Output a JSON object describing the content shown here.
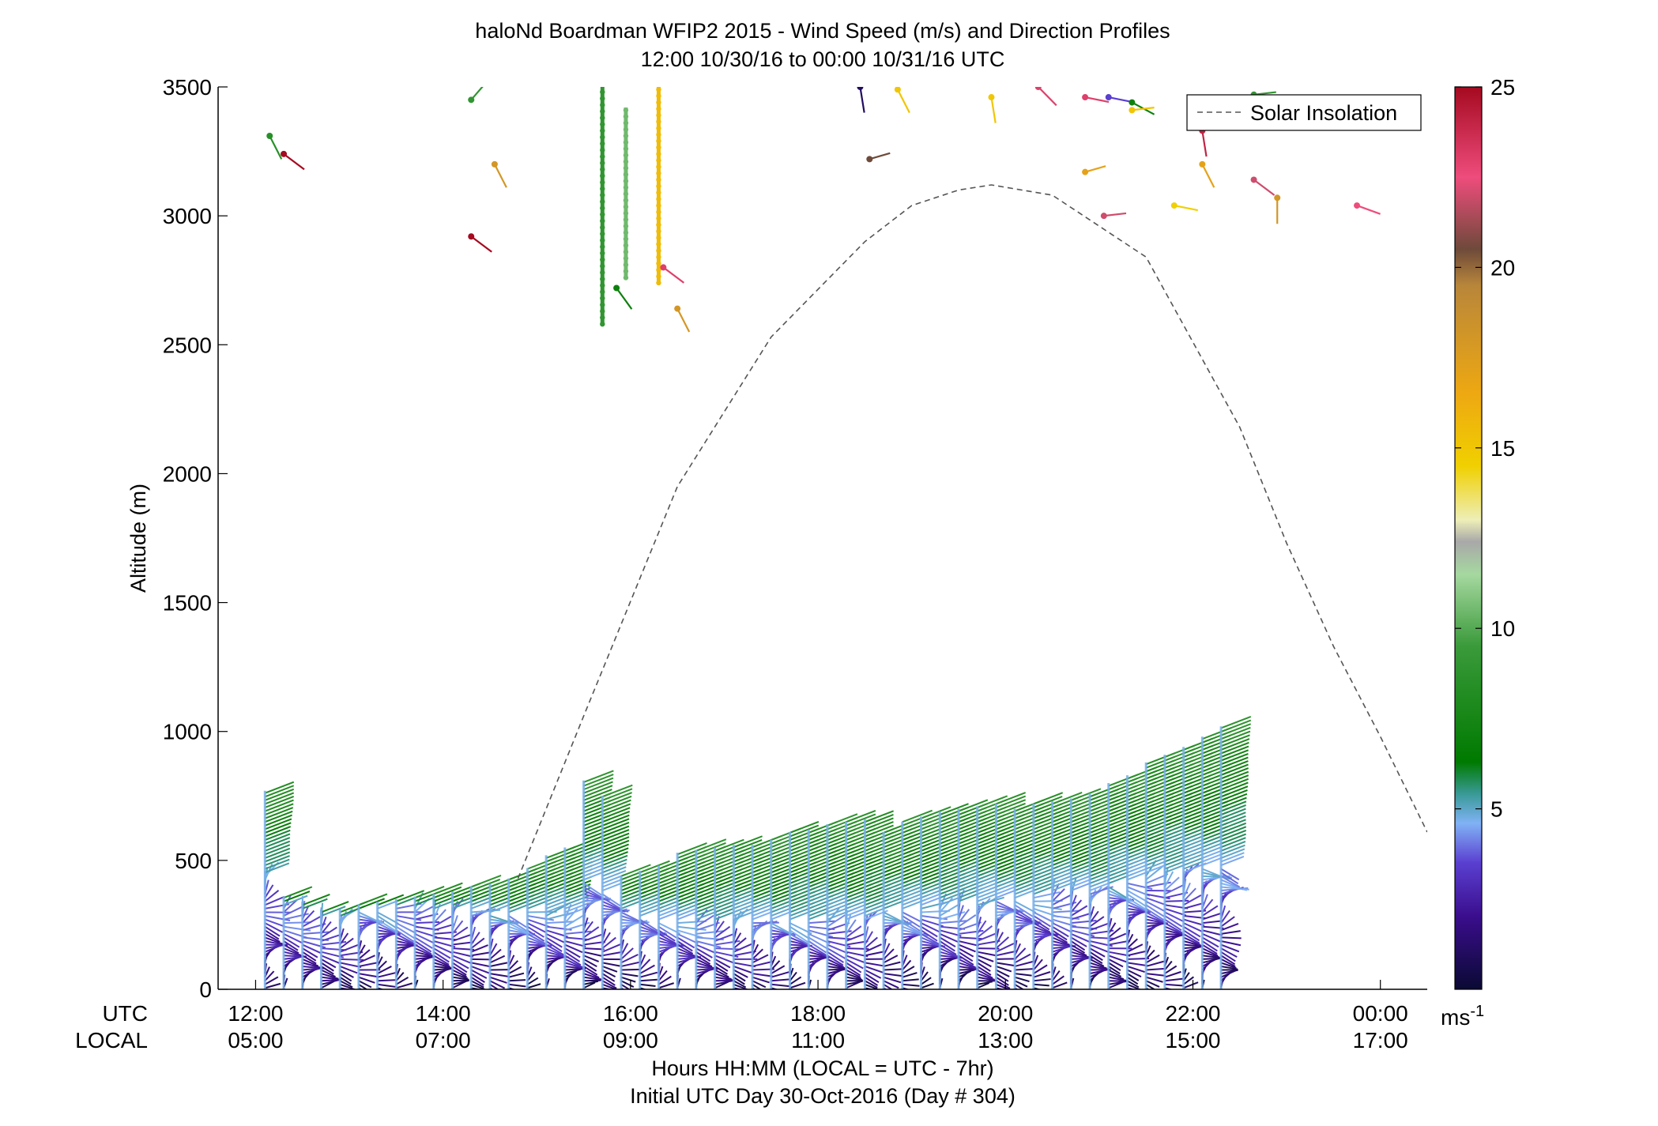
{
  "chart_data": {
    "type": "wind_barb_profile",
    "title": "haloNd Boardman WFIP2 2015 - Wind Speed (m/s) and Direction Profiles",
    "subtitle": "12:00 10/30/16 to 00:00 10/31/16  UTC",
    "ylabel": "Altitude (m)",
    "ylim": [
      0,
      3500
    ],
    "yticks": [
      "0",
      "500",
      "1000",
      "1500",
      "2000",
      "2500",
      "3000",
      "3500"
    ],
    "x_range_hours_utc": [
      11.6,
      24.5
    ],
    "xtick_utc": [
      "12:00",
      "14:00",
      "16:00",
      "18:00",
      "20:00",
      "22:00",
      "00:00"
    ],
    "xtick_local": [
      "05:00",
      "07:00",
      "09:00",
      "11:00",
      "13:00",
      "15:00",
      "17:00"
    ],
    "x_row_label_utc": "UTC",
    "x_row_label_local": "LOCAL",
    "xlabel_line1": "Hours HH:MM  (LOCAL = UTC - 7hr)",
    "xlabel_line2": "Initial UTC Day 30-Oct-2016 (Day # 304)",
    "legend": {
      "entry": "Solar Insolation",
      "placement": "top-right",
      "style": "dashed",
      "color": "#555555"
    },
    "colorbar": {
      "ticks": [
        "5",
        "10",
        "15",
        "20",
        "25"
      ],
      "unit_label": "ms",
      "unit_exp": "-1",
      "range": [
        0,
        25
      ],
      "stops": [
        {
          "v": 0,
          "c": "#0a0a33"
        },
        {
          "v": 2,
          "c": "#3a0d8c"
        },
        {
          "v": 3.5,
          "c": "#5a3fd0"
        },
        {
          "v": 4.6,
          "c": "#80b2f5"
        },
        {
          "v": 5.4,
          "c": "#3a9a98"
        },
        {
          "v": 6.3,
          "c": "#007a00"
        },
        {
          "v": 9.5,
          "c": "#3a9a3a"
        },
        {
          "v": 11.5,
          "c": "#a6d8a0"
        },
        {
          "v": 12.4,
          "c": "#a8a8a8"
        },
        {
          "v": 13,
          "c": "#eeeeb8"
        },
        {
          "v": 14.5,
          "c": "#f0d000"
        },
        {
          "v": 16.5,
          "c": "#eea812"
        },
        {
          "v": 19.5,
          "c": "#b8863a"
        },
        {
          "v": 20.5,
          "c": "#6e4a3a"
        },
        {
          "v": 22.5,
          "c": "#ee4c7c"
        },
        {
          "v": 25,
          "c": "#a50a20"
        }
      ]
    },
    "solar_insolation_curve": {
      "hours_utc": [
        14.8,
        15.5,
        16.5,
        17.5,
        18.5,
        19.0,
        19.5,
        19.85,
        20.5,
        21.5,
        22.5,
        23.0,
        23.5,
        24.0,
        24.5
      ],
      "altitude_m": [
        430,
        1060,
        1950,
        2530,
        2900,
        3040,
        3100,
        3120,
        3080,
        2840,
        2180,
        1730,
        1330,
        980,
        610
      ]
    },
    "wind_profiles": {
      "start_hour_utc": 12.1,
      "step_hours": 0.2,
      "top_altitude_m": [
        770,
        360,
        340,
        310,
        310,
        330,
        340,
        350,
        360,
        370,
        380,
        400,
        410,
        430,
        470,
        520,
        550,
        810,
        750,
        440,
        460,
        480,
        530,
        540,
        550,
        560,
        560,
        580,
        610,
        620,
        640,
        650,
        660,
        610,
        650,
        670,
        690,
        700,
        710,
        720,
        700,
        720,
        730,
        740,
        760,
        800,
        830,
        880,
        910,
        940,
        980,
        1020
      ],
      "transition_altitude_m": [
        440,
        320,
        300,
        280,
        280,
        300,
        310,
        320,
        320,
        310,
        300,
        300,
        290,
        290,
        300,
        290,
        280,
        420,
        380,
        300,
        280,
        270,
        270,
        260,
        260,
        270,
        260,
        260,
        270,
        260,
        260,
        260,
        270,
        300,
        300,
        320,
        320,
        330,
        340,
        350,
        350,
        360,
        370,
        380,
        380,
        400,
        420,
        440,
        450,
        460,
        470,
        480
      ],
      "speed_surface_ms": 3,
      "speed_top_ms": 8,
      "direction_deg": "mostly southwesterly aloft, variable near surface"
    },
    "upper_level_points": [
      {
        "t": 12.15,
        "alt": 3310,
        "spd": 8.5,
        "dir": 210
      },
      {
        "t": 12.3,
        "alt": 3240,
        "spd": 25,
        "dir": 240
      },
      {
        "t": 14.3,
        "alt": 3450,
        "spd": 9,
        "dir": 330
      },
      {
        "t": 14.3,
        "alt": 2920,
        "spd": 25,
        "dir": 240
      },
      {
        "t": 14.55,
        "alt": 3200,
        "spd": 18,
        "dir": 210
      },
      {
        "t": 15.85,
        "alt": 2720,
        "spd": 7,
        "dir": 220
      },
      {
        "t": 16.35,
        "alt": 2800,
        "spd": 23,
        "dir": 240
      },
      {
        "t": 16.5,
        "alt": 2640,
        "spd": 18,
        "dir": 210
      },
      {
        "t": 18.55,
        "alt": 3220,
        "spd": 20.5,
        "dir": 300
      },
      {
        "t": 18.85,
        "alt": 3490,
        "spd": 15,
        "dir": 210
      },
      {
        "t": 19.85,
        "alt": 3460,
        "spd": 15,
        "dir": 190
      },
      {
        "t": 20.35,
        "alt": 3500,
        "spd": 23,
        "dir": 230
      },
      {
        "t": 20.85,
        "alt": 3460,
        "spd": 23,
        "dir": 270
      },
      {
        "t": 21.1,
        "alt": 3460,
        "spd": 3.5,
        "dir": 270
      },
      {
        "t": 21.35,
        "alt": 3440,
        "spd": 7,
        "dir": 250
      },
      {
        "t": 21.35,
        "alt": 3410,
        "spd": 15,
        "dir": 290
      },
      {
        "t": 20.85,
        "alt": 3170,
        "spd": 17,
        "dir": 300
      },
      {
        "t": 21.05,
        "alt": 3000,
        "spd": 22,
        "dir": 290
      },
      {
        "t": 21.8,
        "alt": 3040,
        "spd": 14.5,
        "dir": 270
      },
      {
        "t": 22.1,
        "alt": 3200,
        "spd": 17,
        "dir": 210
      },
      {
        "t": 22.1,
        "alt": 3330,
        "spd": 24,
        "dir": 190
      },
      {
        "t": 22.65,
        "alt": 3140,
        "spd": 22,
        "dir": 240
      },
      {
        "t": 22.9,
        "alt": 3070,
        "spd": 18,
        "dir": 180
      },
      {
        "t": 23.75,
        "alt": 3040,
        "spd": 22.5,
        "dir": 260
      },
      {
        "t": 22.65,
        "alt": 3470,
        "spd": 9,
        "dir": 290
      },
      {
        "t": 18.45,
        "alt": 3500,
        "spd": 1,
        "dir": 190
      }
    ],
    "upper_level_columns": [
      {
        "t": 15.7,
        "alt_from": 2580,
        "alt_to": 3500,
        "spd": 9
      },
      {
        "t": 15.95,
        "alt_from": 2760,
        "alt_to": 3420,
        "spd": 10.5
      },
      {
        "t": 16.3,
        "alt_from": 2740,
        "alt_to": 3500,
        "spd": 15.5
      }
    ]
  }
}
